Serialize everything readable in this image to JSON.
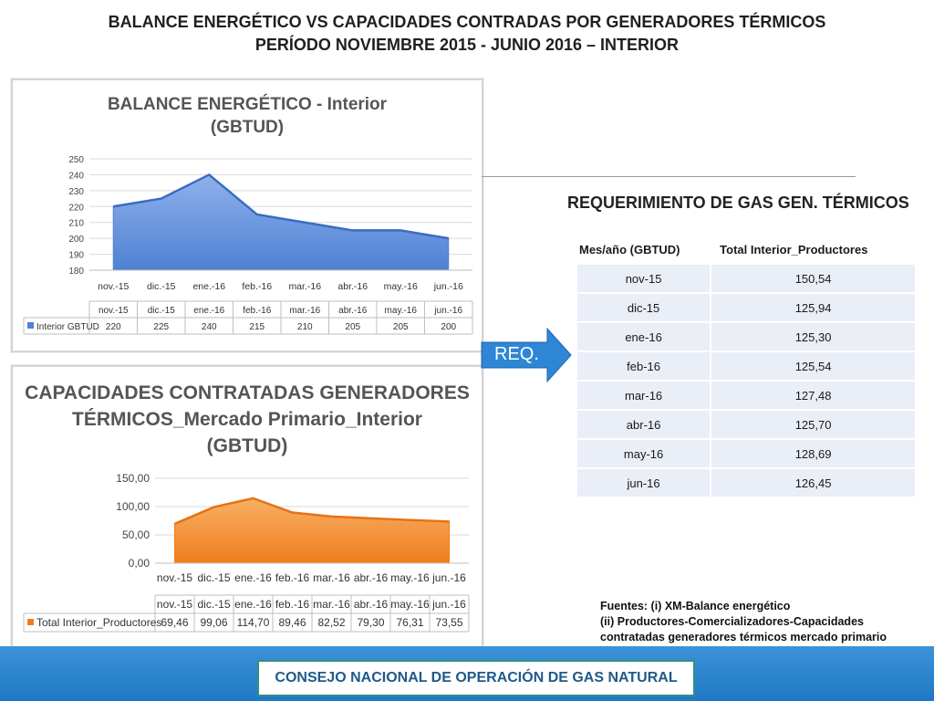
{
  "page": {
    "title_line1": "BALANCE ENERGÉTICO VS CAPACIDADES CONTRADAS POR GENERADORES TÉRMICOS",
    "title_line2": "PERÍODO NOVIEMBRE 2015 - JUNIO 2016 – INTERIOR",
    "arrow_label": "REQ.",
    "footer": "CONSEJO NACIONAL DE OPERACIÓN DE GAS NATURAL",
    "sources": [
      "Fuentes: (i) XM-Balance energético",
      "(ii) Productores-Comercializadores-Capacidades",
      "contratadas generadores térmicos mercado primario"
    ]
  },
  "colors": {
    "blue_area": "#4f81d4",
    "blue_area_light": "#8fb1ea",
    "orange_area": "#ef7d1e",
    "orange_area_light": "#f8b064",
    "table_row": "#e9eef7",
    "footer": "#2a84cf"
  },
  "chart_data": [
    {
      "type": "area",
      "title_line1": "BALANCE ENERGÉTICO - Interior",
      "title_line2": "(GBTUD)",
      "categories": [
        "nov.-15",
        "dic.-15",
        "ene.-16",
        "feb.-16",
        "mar.-16",
        "abr.-16",
        "may.-16",
        "jun.-16"
      ],
      "series": [
        {
          "name": "Interior GBTUD",
          "values": [
            220,
            225,
            240,
            215,
            210,
            205,
            205,
            200
          ]
        }
      ],
      "value_labels": [
        "220",
        "225",
        "240",
        "215",
        "210",
        "205",
        "205",
        "200"
      ],
      "ylim": [
        180,
        250
      ],
      "yticks": [
        "180",
        "190",
        "200",
        "210",
        "220",
        "230",
        "240",
        "250"
      ],
      "grid": true,
      "legend": "data-table-bottom"
    },
    {
      "type": "area",
      "title_line1": "CAPACIDADES CONTRATADAS  GENERADORES",
      "title_line2": "TÉRMICOS_Mercado Primario_Interior",
      "title_line3": "(GBTUD)",
      "categories": [
        "nov.-15",
        "dic.-15",
        "ene.-16",
        "feb.-16",
        "mar.-16",
        "abr.-16",
        "may.-16",
        "jun.-16"
      ],
      "series": [
        {
          "name": "Total Interior_Productores",
          "values": [
            69.46,
            99.06,
            114.7,
            89.46,
            82.52,
            79.3,
            76.31,
            73.55
          ]
        }
      ],
      "value_labels": [
        "69,46",
        "99,06",
        "114,70",
        "89,46",
        "82,52",
        "79,30",
        "76,31",
        "73,55"
      ],
      "ylim": [
        0,
        150
      ],
      "yticks": [
        "0,00",
        "50,00",
        "100,00",
        "150,00"
      ],
      "grid": true,
      "legend": "data-table-bottom"
    }
  ],
  "req_table": {
    "title": "REQUERIMIENTO DE GAS GEN. TÉRMICOS",
    "headers": [
      "Mes/año (GBTUD)",
      "Total Interior_Productores"
    ],
    "rows": [
      [
        "nov-15",
        "150,54"
      ],
      [
        "dic-15",
        "125,94"
      ],
      [
        "ene-16",
        "125,30"
      ],
      [
        "feb-16",
        "125,54"
      ],
      [
        "mar-16",
        "127,48"
      ],
      [
        "abr-16",
        "125,70"
      ],
      [
        "may-16",
        "128,69"
      ],
      [
        "jun-16",
        "126,45"
      ]
    ]
  }
}
